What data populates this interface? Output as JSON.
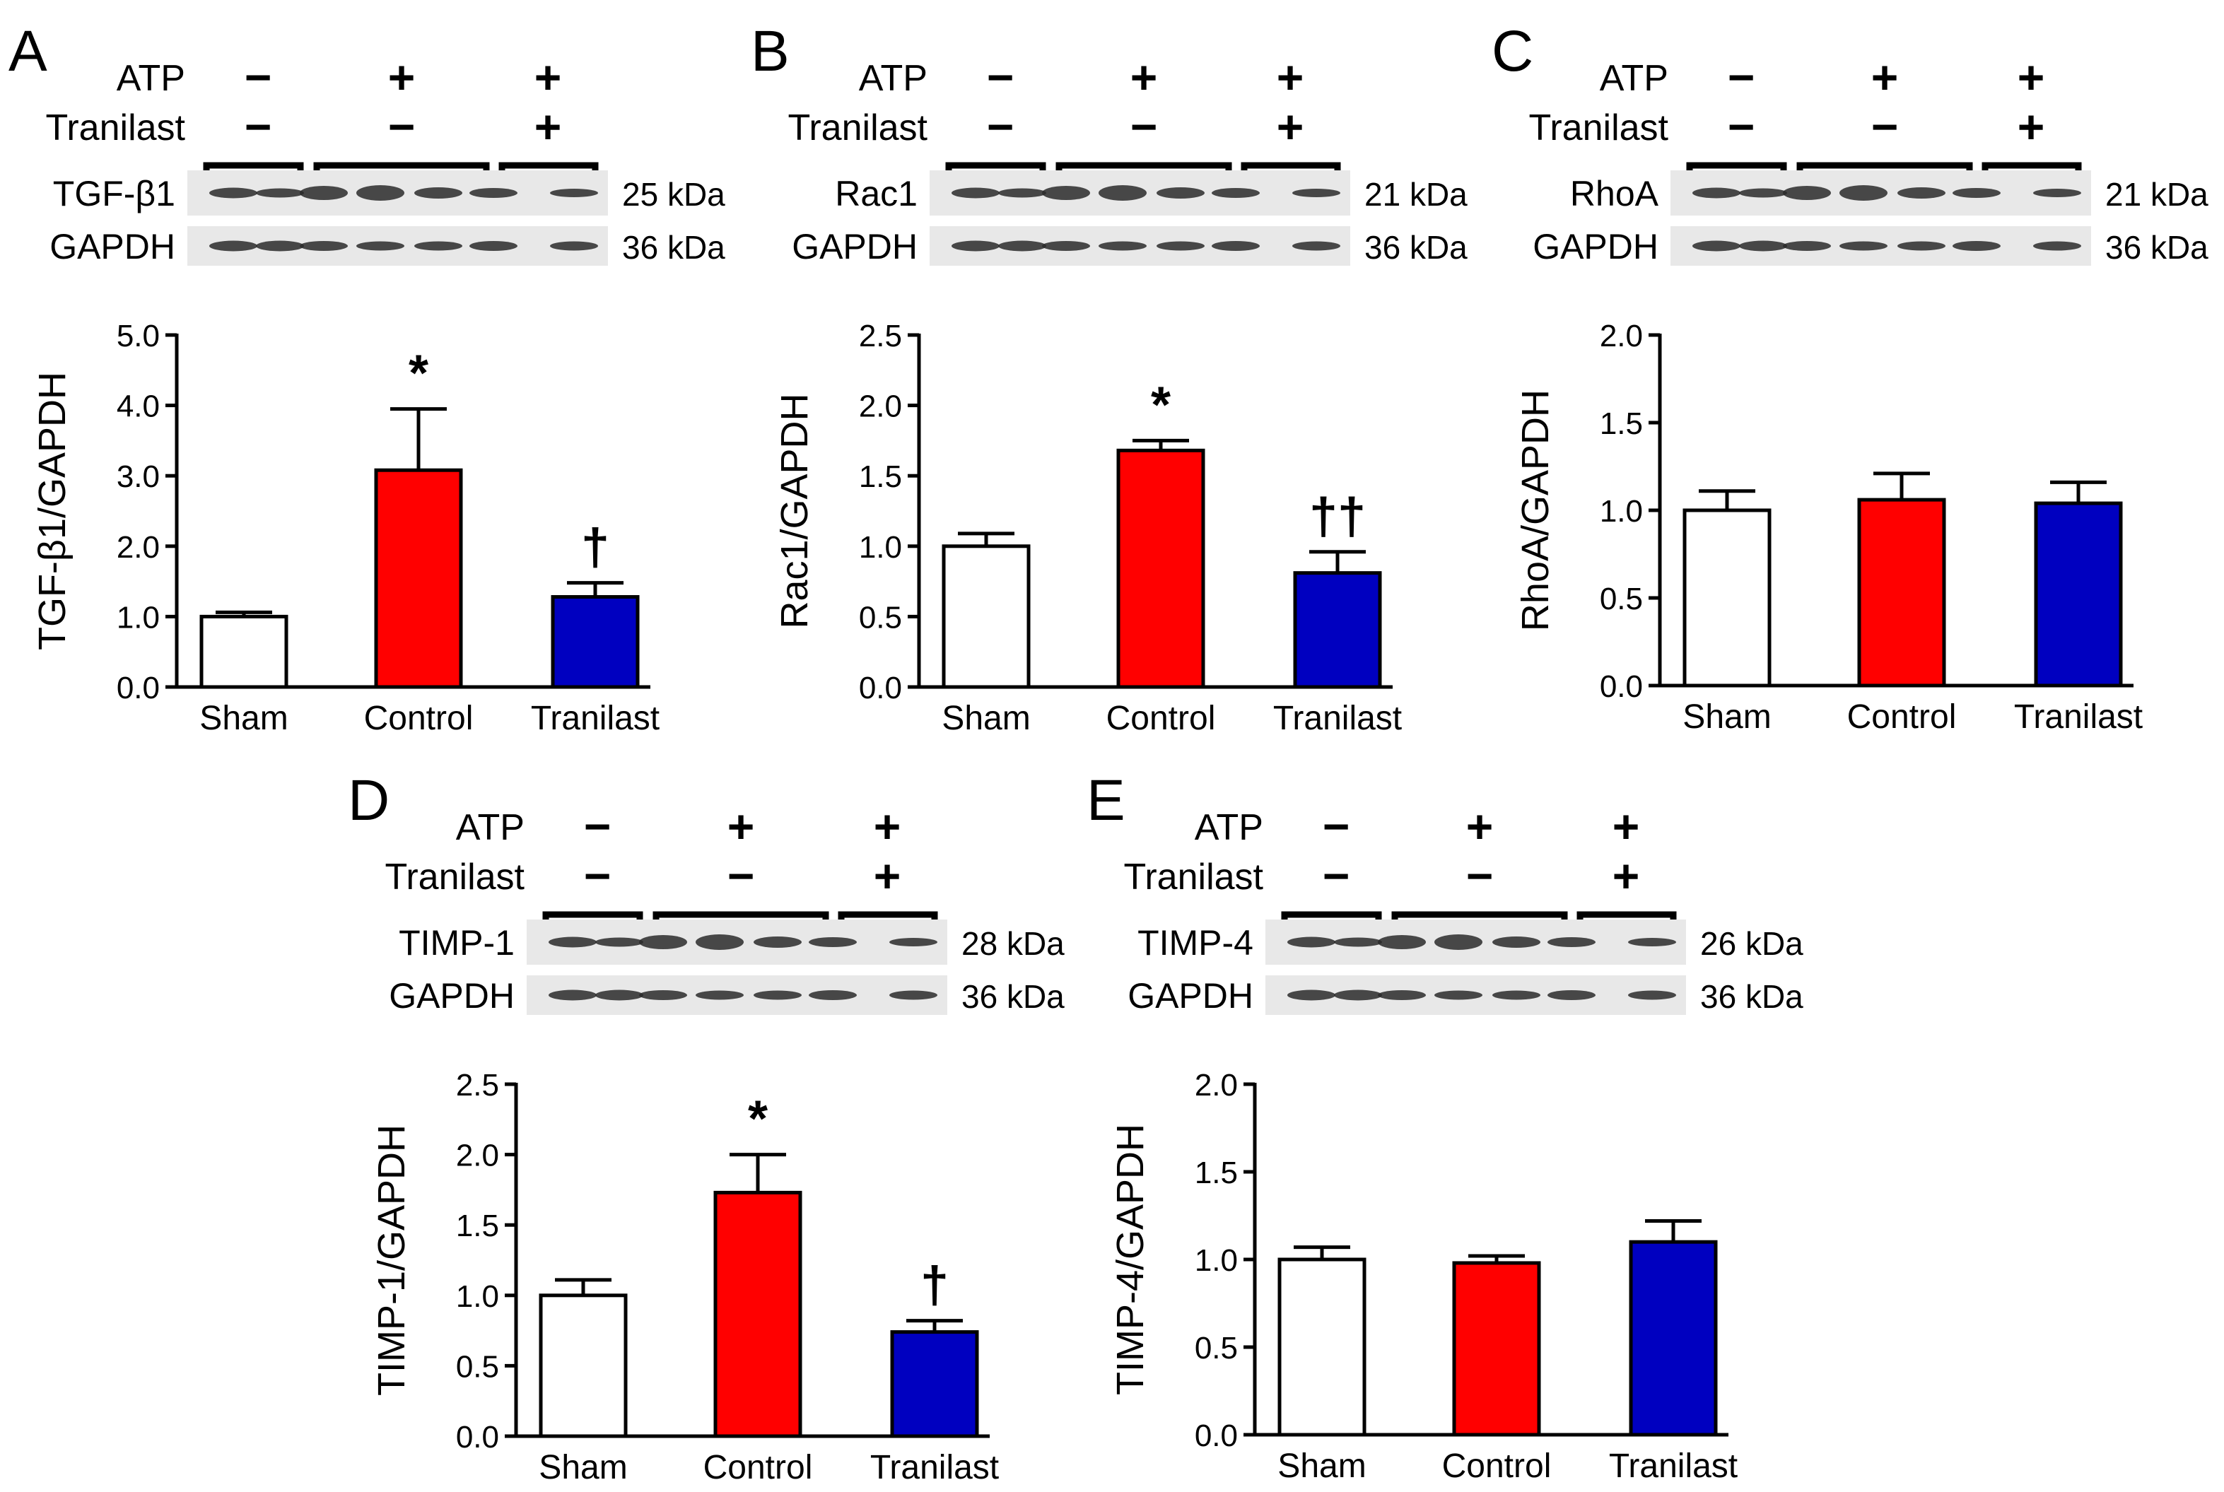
{
  "panels": [
    {
      "letter": "A",
      "treatments": [
        {
          "label": "ATP",
          "signs": [
            "−",
            "+",
            "+"
          ]
        },
        {
          "label": "Tranilast",
          "signs": [
            "−",
            "−",
            "+"
          ]
        }
      ],
      "blots": [
        {
          "protein": "TGF-β1",
          "kda": "25 kDa"
        },
        {
          "protein": "GAPDH",
          "kda": "36 kDa"
        }
      ]
    },
    {
      "letter": "B",
      "treatments": [
        {
          "label": "ATP",
          "signs": [
            "−",
            "+",
            "+"
          ]
        },
        {
          "label": "Tranilast",
          "signs": [
            "−",
            "−",
            "+"
          ]
        }
      ],
      "blots": [
        {
          "protein": "Rac1",
          "kda": "21 kDa"
        },
        {
          "protein": "GAPDH",
          "kda": "36 kDa"
        }
      ]
    },
    {
      "letter": "C",
      "treatments": [
        {
          "label": "ATP",
          "signs": [
            "−",
            "+",
            "+"
          ]
        },
        {
          "label": "Tranilast",
          "signs": [
            "−",
            "−",
            "+"
          ]
        }
      ],
      "blots": [
        {
          "protein": "RhoA",
          "kda": "21 kDa"
        },
        {
          "protein": "GAPDH",
          "kda": "36 kDa"
        }
      ]
    },
    {
      "letter": "D",
      "treatments": [
        {
          "label": "ATP",
          "signs": [
            "−",
            "+",
            "+"
          ]
        },
        {
          "label": "Tranilast",
          "signs": [
            "−",
            "−",
            "+"
          ]
        }
      ],
      "blots": [
        {
          "protein": "TIMP-1",
          "kda": "28 kDa"
        },
        {
          "protein": "GAPDH",
          "kda": "36 kDa"
        }
      ]
    },
    {
      "letter": "E",
      "treatments": [
        {
          "label": "ATP",
          "signs": [
            "−",
            "+",
            "+"
          ]
        },
        {
          "label": "Tranilast",
          "signs": [
            "−",
            "−",
            "+"
          ]
        }
      ],
      "blots": [
        {
          "protein": "TIMP-4",
          "kda": "26 kDa"
        },
        {
          "protein": "GAPDH",
          "kda": "36 kDa"
        }
      ]
    }
  ],
  "colors": {
    "Sham": "#ffffff",
    "Control": "#ff0000",
    "Tranilast": "#0000c0"
  },
  "chart_data": [
    {
      "type": "bar",
      "ylabel": "TGF-β1/GAPDH",
      "categories": [
        "Sham",
        "Control",
        "Tranilast"
      ],
      "values": [
        1.0,
        3.08,
        1.28
      ],
      "errors": [
        0.06,
        0.87,
        0.2
      ],
      "significance": [
        "",
        "*",
        "†"
      ],
      "ylim": [
        0,
        5
      ],
      "yticks": [
        "0.0",
        "1.0",
        "2.0",
        "3.0",
        "4.0",
        "5.0"
      ],
      "grid": false,
      "legend": "none"
    },
    {
      "type": "bar",
      "ylabel": "Rac1/GAPDH",
      "categories": [
        "Sham",
        "Control",
        "Tranilast"
      ],
      "values": [
        1.0,
        1.68,
        0.81
      ],
      "errors": [
        0.09,
        0.07,
        0.15
      ],
      "significance": [
        "",
        "*",
        "††"
      ],
      "ylim": [
        0,
        2.5
      ],
      "yticks": [
        "0.0",
        "0.5",
        "1.0",
        "1.5",
        "2.0",
        "2.5"
      ],
      "grid": false,
      "legend": "none"
    },
    {
      "type": "bar",
      "ylabel": "RhoA/GAPDH",
      "categories": [
        "Sham",
        "Control",
        "Tranilast"
      ],
      "values": [
        1.0,
        1.06,
        1.04
      ],
      "errors": [
        0.11,
        0.15,
        0.12
      ],
      "significance": [
        "",
        "",
        ""
      ],
      "ylim": [
        0,
        2
      ],
      "yticks": [
        "0.0",
        "0.5",
        "1.0",
        "1.5",
        "2.0"
      ],
      "grid": false,
      "legend": "none"
    },
    {
      "type": "bar",
      "ylabel": "TIMP-1/GAPDH",
      "categories": [
        "Sham",
        "Control",
        "Tranilast"
      ],
      "values": [
        1.0,
        1.73,
        0.74
      ],
      "errors": [
        0.11,
        0.27,
        0.08
      ],
      "significance": [
        "",
        "*",
        "†"
      ],
      "ylim": [
        0,
        2.5
      ],
      "yticks": [
        "0.0",
        "0.5",
        "1.0",
        "1.5",
        "2.0",
        "2.5"
      ],
      "grid": false,
      "legend": "none"
    },
    {
      "type": "bar",
      "ylabel": "TIMP-4/GAPDH",
      "categories": [
        "Sham",
        "Control",
        "Tranilast"
      ],
      "values": [
        1.0,
        0.98,
        1.1
      ],
      "errors": [
        0.07,
        0.04,
        0.12
      ],
      "significance": [
        "",
        "",
        ""
      ],
      "ylim": [
        0,
        2
      ],
      "yticks": [
        "0.0",
        "0.5",
        "1.0",
        "1.5",
        "2.0"
      ],
      "grid": false,
      "legend": "none"
    }
  ]
}
